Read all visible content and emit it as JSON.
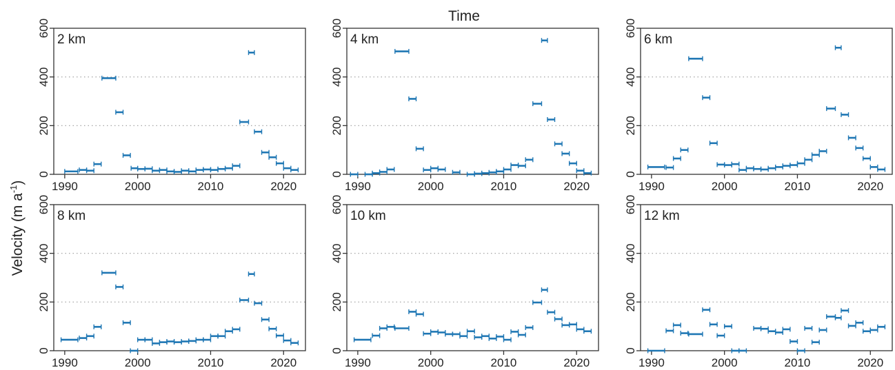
{
  "figure": {
    "xlabel": "Time",
    "ylabel_main": "Velocity (m a",
    "ylabel_sup": "-1",
    "ylabel_close": ")"
  },
  "style": {
    "marker_color": "#1f77b4",
    "grid_color": "#9a9a9a",
    "axis_color": "#333333"
  },
  "chart_data": [
    {
      "type": "scatter",
      "title": "2 km",
      "xlim": [
        1988.5,
        2023
      ],
      "ylim": [
        0,
        600
      ],
      "xticks": [
        1990,
        2000,
        2010,
        2020
      ],
      "yticks": [
        0,
        200,
        400,
        600
      ],
      "grid_y": [
        200,
        400
      ],
      "points": [
        {
          "x0": 1990,
          "x1": 1991.8,
          "y": 12
        },
        {
          "x0": 1992,
          "x1": 1993,
          "y": 18
        },
        {
          "x0": 1993,
          "x1": 1994,
          "y": 15
        },
        {
          "x0": 1994,
          "x1": 1995,
          "y": 42
        },
        {
          "x0": 1995.1,
          "x1": 1997,
          "y": 395
        },
        {
          "x0": 1997,
          "x1": 1998,
          "y": 255
        },
        {
          "x0": 1998,
          "x1": 1999,
          "y": 78
        },
        {
          "x0": 1999.1,
          "x1": 2000,
          "y": 25
        },
        {
          "x0": 2000,
          "x1": 2001,
          "y": 22
        },
        {
          "x0": 2001,
          "x1": 2002,
          "y": 23
        },
        {
          "x0": 2002,
          "x1": 2003,
          "y": 15
        },
        {
          "x0": 2003,
          "x1": 2004,
          "y": 18
        },
        {
          "x0": 2004,
          "x1": 2005,
          "y": 12
        },
        {
          "x0": 2005,
          "x1": 2006,
          "y": 10
        },
        {
          "x0": 2006,
          "x1": 2007,
          "y": 15
        },
        {
          "x0": 2007,
          "x1": 2008,
          "y": 12
        },
        {
          "x0": 2008,
          "x1": 2009,
          "y": 18
        },
        {
          "x0": 2009,
          "x1": 2010,
          "y": 20
        },
        {
          "x0": 2010,
          "x1": 2011,
          "y": 18
        },
        {
          "x0": 2011,
          "x1": 2012,
          "y": 22
        },
        {
          "x0": 2012,
          "x1": 2013,
          "y": 25
        },
        {
          "x0": 2013,
          "x1": 2014,
          "y": 35
        },
        {
          "x0": 2014,
          "x1": 2015.2,
          "y": 215
        },
        {
          "x0": 2015.2,
          "x1": 2016,
          "y": 500
        },
        {
          "x0": 2016,
          "x1": 2017,
          "y": 175
        },
        {
          "x0": 2017,
          "x1": 2018,
          "y": 90
        },
        {
          "x0": 2018,
          "x1": 2019,
          "y": 70
        },
        {
          "x0": 2019,
          "x1": 2020,
          "y": 45
        },
        {
          "x0": 2020,
          "x1": 2021,
          "y": 25
        },
        {
          "x0": 2021,
          "x1": 2022,
          "y": 18
        }
      ]
    },
    {
      "type": "scatter",
      "title": "4 km",
      "xlim": [
        1988.5,
        2023
      ],
      "ylim": [
        0,
        600
      ],
      "xticks": [
        1990,
        2000,
        2010,
        2020
      ],
      "yticks": [
        0,
        200,
        400,
        600
      ],
      "grid_y": [
        200,
        400
      ],
      "points": [
        {
          "x0": 1989,
          "x1": 1990,
          "y": 0
        },
        {
          "x0": 1991,
          "x1": 1992,
          "y": 0
        },
        {
          "x0": 1992,
          "x1": 1993,
          "y": 5
        },
        {
          "x0": 1993,
          "x1": 1994,
          "y": 10
        },
        {
          "x0": 1994,
          "x1": 1995,
          "y": 20
        },
        {
          "x0": 1995.1,
          "x1": 1997,
          "y": 505
        },
        {
          "x0": 1997,
          "x1": 1998,
          "y": 310
        },
        {
          "x0": 1998,
          "x1": 1999,
          "y": 105
        },
        {
          "x0": 1999,
          "x1": 2000,
          "y": 18
        },
        {
          "x0": 2000,
          "x1": 2001,
          "y": 25
        },
        {
          "x0": 2001,
          "x1": 2002,
          "y": 20
        },
        {
          "x0": 2003,
          "x1": 2004,
          "y": 8
        },
        {
          "x0": 2005,
          "x1": 2006,
          "y": 0
        },
        {
          "x0": 2006,
          "x1": 2007,
          "y": 3
        },
        {
          "x0": 2007,
          "x1": 2008,
          "y": 5
        },
        {
          "x0": 2008,
          "x1": 2009,
          "y": 8
        },
        {
          "x0": 2009,
          "x1": 2010,
          "y": 12
        },
        {
          "x0": 2010,
          "x1": 2011,
          "y": 20
        },
        {
          "x0": 2011,
          "x1": 2012,
          "y": 38
        },
        {
          "x0": 2012,
          "x1": 2013,
          "y": 35
        },
        {
          "x0": 2013,
          "x1": 2014,
          "y": 60
        },
        {
          "x0": 2014,
          "x1": 2015.2,
          "y": 290
        },
        {
          "x0": 2015.2,
          "x1": 2016,
          "y": 550
        },
        {
          "x0": 2016,
          "x1": 2017,
          "y": 225
        },
        {
          "x0": 2017,
          "x1": 2018,
          "y": 125
        },
        {
          "x0": 2018,
          "x1": 2019,
          "y": 85
        },
        {
          "x0": 2019,
          "x1": 2020,
          "y": 45
        },
        {
          "x0": 2020,
          "x1": 2021,
          "y": 15
        },
        {
          "x0": 2021,
          "x1": 2022,
          "y": 5
        }
      ]
    },
    {
      "type": "scatter",
      "title": "6 km",
      "xlim": [
        1988.5,
        2023
      ],
      "ylim": [
        0,
        600
      ],
      "xticks": [
        1990,
        2000,
        2010,
        2020
      ],
      "yticks": [
        0,
        200,
        400,
        600
      ],
      "grid_y": [
        200,
        400
      ],
      "points": [
        {
          "x0": 1989.5,
          "x1": 1991.8,
          "y": 30
        },
        {
          "x0": 1992,
          "x1": 1993,
          "y": 28
        },
        {
          "x0": 1993,
          "x1": 1994,
          "y": 65
        },
        {
          "x0": 1994,
          "x1": 1995,
          "y": 100
        },
        {
          "x0": 1995.1,
          "x1": 1997,
          "y": 475
        },
        {
          "x0": 1997,
          "x1": 1998,
          "y": 315
        },
        {
          "x0": 1998,
          "x1": 1999,
          "y": 128
        },
        {
          "x0": 1999,
          "x1": 2000,
          "y": 40
        },
        {
          "x0": 2000,
          "x1": 2001,
          "y": 38
        },
        {
          "x0": 2001,
          "x1": 2002,
          "y": 42
        },
        {
          "x0": 2002,
          "x1": 2003,
          "y": 18
        },
        {
          "x0": 2003,
          "x1": 2004,
          "y": 25
        },
        {
          "x0": 2004,
          "x1": 2005,
          "y": 22
        },
        {
          "x0": 2005,
          "x1": 2006,
          "y": 20
        },
        {
          "x0": 2006,
          "x1": 2007,
          "y": 25
        },
        {
          "x0": 2007,
          "x1": 2008,
          "y": 30
        },
        {
          "x0": 2008,
          "x1": 2009,
          "y": 35
        },
        {
          "x0": 2009,
          "x1": 2010,
          "y": 38
        },
        {
          "x0": 2010,
          "x1": 2011,
          "y": 45
        },
        {
          "x0": 2011,
          "x1": 2012,
          "y": 60
        },
        {
          "x0": 2012,
          "x1": 2013,
          "y": 80
        },
        {
          "x0": 2013,
          "x1": 2014,
          "y": 95
        },
        {
          "x0": 2014,
          "x1": 2015.2,
          "y": 270
        },
        {
          "x0": 2015.2,
          "x1": 2016,
          "y": 520
        },
        {
          "x0": 2016,
          "x1": 2017,
          "y": 245
        },
        {
          "x0": 2017,
          "x1": 2018,
          "y": 150
        },
        {
          "x0": 2018,
          "x1": 2019,
          "y": 108
        },
        {
          "x0": 2019,
          "x1": 2020,
          "y": 65
        },
        {
          "x0": 2020,
          "x1": 2021,
          "y": 30
        },
        {
          "x0": 2021,
          "x1": 2022,
          "y": 20
        }
      ]
    },
    {
      "type": "scatter",
      "title": "8 km",
      "xlim": [
        1988.5,
        2023
      ],
      "ylim": [
        0,
        600
      ],
      "xticks": [
        1990,
        2000,
        2010,
        2020
      ],
      "yticks": [
        0,
        200,
        400,
        600
      ],
      "grid_y": [
        200,
        400
      ],
      "points": [
        {
          "x0": 1989.5,
          "x1": 1991.8,
          "y": 45
        },
        {
          "x0": 1992,
          "x1": 1993,
          "y": 52
        },
        {
          "x0": 1993,
          "x1": 1994,
          "y": 60
        },
        {
          "x0": 1994,
          "x1": 1995,
          "y": 98
        },
        {
          "x0": 1995.1,
          "x1": 1997,
          "y": 320
        },
        {
          "x0": 1997,
          "x1": 1998,
          "y": 262
        },
        {
          "x0": 1998,
          "x1": 1999,
          "y": 115
        },
        {
          "x0": 1999,
          "x1": 2000,
          "y": 0
        },
        {
          "x0": 2000,
          "x1": 2001,
          "y": 45
        },
        {
          "x0": 2001,
          "x1": 2002,
          "y": 45
        },
        {
          "x0": 2002,
          "x1": 2003,
          "y": 30
        },
        {
          "x0": 2003,
          "x1": 2004,
          "y": 35
        },
        {
          "x0": 2004,
          "x1": 2005,
          "y": 38
        },
        {
          "x0": 2005,
          "x1": 2006,
          "y": 35
        },
        {
          "x0": 2006,
          "x1": 2007,
          "y": 38
        },
        {
          "x0": 2007,
          "x1": 2008,
          "y": 40
        },
        {
          "x0": 2008,
          "x1": 2009,
          "y": 45
        },
        {
          "x0": 2009,
          "x1": 2010,
          "y": 45
        },
        {
          "x0": 2010,
          "x1": 2011,
          "y": 60
        },
        {
          "x0": 2011,
          "x1": 2012,
          "y": 60
        },
        {
          "x0": 2012,
          "x1": 2013,
          "y": 80
        },
        {
          "x0": 2013,
          "x1": 2014,
          "y": 88
        },
        {
          "x0": 2014,
          "x1": 2015.2,
          "y": 208
        },
        {
          "x0": 2015.2,
          "x1": 2016,
          "y": 315
        },
        {
          "x0": 2016,
          "x1": 2017,
          "y": 195
        },
        {
          "x0": 2017,
          "x1": 2018,
          "y": 128
        },
        {
          "x0": 2018,
          "x1": 2019,
          "y": 90
        },
        {
          "x0": 2019,
          "x1": 2020,
          "y": 62
        },
        {
          "x0": 2020,
          "x1": 2021,
          "y": 42
        },
        {
          "x0": 2021,
          "x1": 2022,
          "y": 32
        }
      ]
    },
    {
      "type": "scatter",
      "title": "10 km",
      "xlim": [
        1988.5,
        2023
      ],
      "ylim": [
        0,
        600
      ],
      "xticks": [
        1990,
        2000,
        2010,
        2020
      ],
      "yticks": [
        0,
        200,
        400,
        600
      ],
      "grid_y": [
        200,
        400
      ],
      "points": [
        {
          "x0": 1989.5,
          "x1": 1991.8,
          "y": 45
        },
        {
          "x0": 1992,
          "x1": 1993,
          "y": 62
        },
        {
          "x0": 1993,
          "x1": 1994,
          "y": 92
        },
        {
          "x0": 1994,
          "x1": 1995,
          "y": 98
        },
        {
          "x0": 1995.1,
          "x1": 1997,
          "y": 92
        },
        {
          "x0": 1997,
          "x1": 1998,
          "y": 160
        },
        {
          "x0": 1998,
          "x1": 1999,
          "y": 150
        },
        {
          "x0": 1999,
          "x1": 2000,
          "y": 70
        },
        {
          "x0": 2000,
          "x1": 2001,
          "y": 78
        },
        {
          "x0": 2001,
          "x1": 2002,
          "y": 75
        },
        {
          "x0": 2002,
          "x1": 2003,
          "y": 68
        },
        {
          "x0": 2003,
          "x1": 2004,
          "y": 68
        },
        {
          "x0": 2004,
          "x1": 2005,
          "y": 60
        },
        {
          "x0": 2005,
          "x1": 2006,
          "y": 80
        },
        {
          "x0": 2006,
          "x1": 2007,
          "y": 55
        },
        {
          "x0": 2007,
          "x1": 2008,
          "y": 60
        },
        {
          "x0": 2008,
          "x1": 2009,
          "y": 50
        },
        {
          "x0": 2009,
          "x1": 2010,
          "y": 58
        },
        {
          "x0": 2010,
          "x1": 2011,
          "y": 45
        },
        {
          "x0": 2011,
          "x1": 2012,
          "y": 78
        },
        {
          "x0": 2012,
          "x1": 2013,
          "y": 65
        },
        {
          "x0": 2013,
          "x1": 2014,
          "y": 95
        },
        {
          "x0": 2014,
          "x1": 2015.2,
          "y": 198
        },
        {
          "x0": 2015.2,
          "x1": 2016,
          "y": 250
        },
        {
          "x0": 2016,
          "x1": 2017,
          "y": 158
        },
        {
          "x0": 2017,
          "x1": 2018,
          "y": 130
        },
        {
          "x0": 2018,
          "x1": 2019,
          "y": 105
        },
        {
          "x0": 2019,
          "x1": 2020,
          "y": 108
        },
        {
          "x0": 2020,
          "x1": 2021,
          "y": 88
        },
        {
          "x0": 2021,
          "x1": 2022,
          "y": 80
        }
      ]
    },
    {
      "type": "scatter",
      "title": "12 km",
      "xlim": [
        1988.5,
        2023
      ],
      "ylim": [
        0,
        600
      ],
      "xticks": [
        1990,
        2000,
        2010,
        2020
      ],
      "yticks": [
        0,
        200,
        400,
        600
      ],
      "grid_y": [
        200,
        400
      ],
      "points": [
        {
          "x0": 1989.5,
          "x1": 1991.8,
          "y": 0
        },
        {
          "x0": 1992,
          "x1": 1993,
          "y": 82
        },
        {
          "x0": 1993,
          "x1": 1994,
          "y": 105
        },
        {
          "x0": 1994,
          "x1": 1995,
          "y": 72
        },
        {
          "x0": 1995.1,
          "x1": 1997,
          "y": 68
        },
        {
          "x0": 1997,
          "x1": 1998,
          "y": 168
        },
        {
          "x0": 1998,
          "x1": 1999,
          "y": 108
        },
        {
          "x0": 1999,
          "x1": 2000,
          "y": 62
        },
        {
          "x0": 2000,
          "x1": 2001,
          "y": 100
        },
        {
          "x0": 2001,
          "x1": 2002,
          "y": 0
        },
        {
          "x0": 2002,
          "x1": 2003,
          "y": 0
        },
        {
          "x0": 2004,
          "x1": 2005,
          "y": 92
        },
        {
          "x0": 2005,
          "x1": 2006,
          "y": 90
        },
        {
          "x0": 2006,
          "x1": 2007,
          "y": 80
        },
        {
          "x0": 2007,
          "x1": 2008,
          "y": 75
        },
        {
          "x0": 2008,
          "x1": 2009,
          "y": 88
        },
        {
          "x0": 2009,
          "x1": 2010,
          "y": 38
        },
        {
          "x0": 2010,
          "x1": 2011,
          "y": 0
        },
        {
          "x0": 2011,
          "x1": 2012,
          "y": 92
        },
        {
          "x0": 2012,
          "x1": 2013,
          "y": 35
        },
        {
          "x0": 2013,
          "x1": 2014,
          "y": 85
        },
        {
          "x0": 2014,
          "x1": 2015.2,
          "y": 140
        },
        {
          "x0": 2015.2,
          "x1": 2016,
          "y": 135
        },
        {
          "x0": 2016,
          "x1": 2017,
          "y": 165
        },
        {
          "x0": 2017,
          "x1": 2018,
          "y": 102
        },
        {
          "x0": 2018,
          "x1": 2019,
          "y": 115
        },
        {
          "x0": 2019,
          "x1": 2020,
          "y": 80
        },
        {
          "x0": 2020,
          "x1": 2021,
          "y": 85
        },
        {
          "x0": 2021,
          "x1": 2022,
          "y": 98
        }
      ]
    }
  ]
}
